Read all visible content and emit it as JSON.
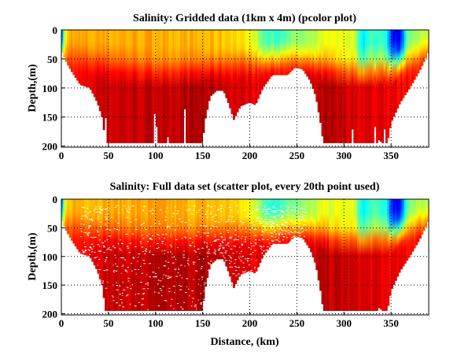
{
  "chart_data": [
    {
      "type": "heatmap",
      "title": "Salinity: Gridded data (1km x 4m) (pcolor plot)",
      "xlabel": "",
      "ylabel": "Depth,(m)",
      "xlim": [
        0,
        390
      ],
      "ylim": [
        0,
        202
      ],
      "y_reversed": true,
      "xticks": [
        0,
        50,
        100,
        150,
        200,
        250,
        300,
        350
      ],
      "yticks": [
        0,
        50,
        100,
        150,
        200
      ],
      "grid": true,
      "colormap": "jet",
      "scatter_dots": false
    },
    {
      "type": "heatmap",
      "title": "Salinity: Full data set (scatter plot, every 20th point used)",
      "xlabel": "Distance, (km)",
      "ylabel": "Depth,(m)",
      "xlim": [
        0,
        390
      ],
      "ylim": [
        0,
        202
      ],
      "y_reversed": true,
      "xticks": [
        0,
        50,
        100,
        150,
        200,
        250,
        300,
        350
      ],
      "yticks": [
        0,
        50,
        100,
        150,
        200
      ],
      "grid": true,
      "colormap": "jet",
      "scatter_dots": true
    }
  ],
  "section": {
    "bottom_depth_profile_km_m": [
      [
        0,
        35
      ],
      [
        5,
        55
      ],
      [
        10,
        70
      ],
      [
        20,
        95
      ],
      [
        30,
        100
      ],
      [
        38,
        125
      ],
      [
        43,
        150
      ],
      [
        47,
        195
      ],
      [
        150,
        195
      ],
      [
        152,
        160
      ],
      [
        158,
        115
      ],
      [
        165,
        105
      ],
      [
        172,
        105
      ],
      [
        178,
        130
      ],
      [
        183,
        155
      ],
      [
        190,
        132
      ],
      [
        200,
        125
      ],
      [
        206,
        130
      ],
      [
        214,
        100
      ],
      [
        224,
        78
      ],
      [
        240,
        78
      ],
      [
        248,
        65
      ],
      [
        256,
        68
      ],
      [
        264,
        88
      ],
      [
        270,
        115
      ],
      [
        275,
        160
      ],
      [
        278,
        195
      ],
      [
        335,
        195
      ],
      [
        337,
        190
      ],
      [
        341,
        195
      ],
      [
        346,
        195
      ],
      [
        350,
        160
      ],
      [
        360,
        125
      ],
      [
        370,
        100
      ],
      [
        380,
        72
      ],
      [
        388,
        45
      ],
      [
        390,
        35
      ]
    ],
    "surface_color_index": [
      [
        0,
        0.15
      ],
      [
        4,
        0.62
      ],
      [
        10,
        0.7
      ],
      [
        100,
        0.71
      ],
      [
        180,
        0.68
      ],
      [
        205,
        0.6
      ],
      [
        215,
        0.45
      ],
      [
        230,
        0.42
      ],
      [
        245,
        0.5
      ],
      [
        262,
        0.52
      ],
      [
        280,
        0.6
      ],
      [
        310,
        0.6
      ],
      [
        320,
        0.35
      ],
      [
        330,
        0.45
      ],
      [
        345,
        0.4
      ],
      [
        352,
        0.12
      ],
      [
        360,
        0.12
      ],
      [
        368,
        0.5
      ],
      [
        380,
        0.55
      ],
      [
        390,
        0.55
      ]
    ],
    "deep_color_index": [
      [
        0,
        0.82
      ],
      [
        40,
        0.92
      ],
      [
        150,
        0.95
      ],
      [
        200,
        0.9
      ],
      [
        250,
        0.88
      ],
      [
        280,
        0.94
      ],
      [
        390,
        0.86
      ]
    ],
    "transition_depth_m": [
      [
        0,
        30
      ],
      [
        40,
        45
      ],
      [
        100,
        60
      ],
      [
        150,
        55
      ],
      [
        200,
        45
      ],
      [
        240,
        35
      ],
      [
        260,
        40
      ],
      [
        300,
        60
      ],
      [
        350,
        50
      ],
      [
        390,
        25
      ]
    ]
  }
}
